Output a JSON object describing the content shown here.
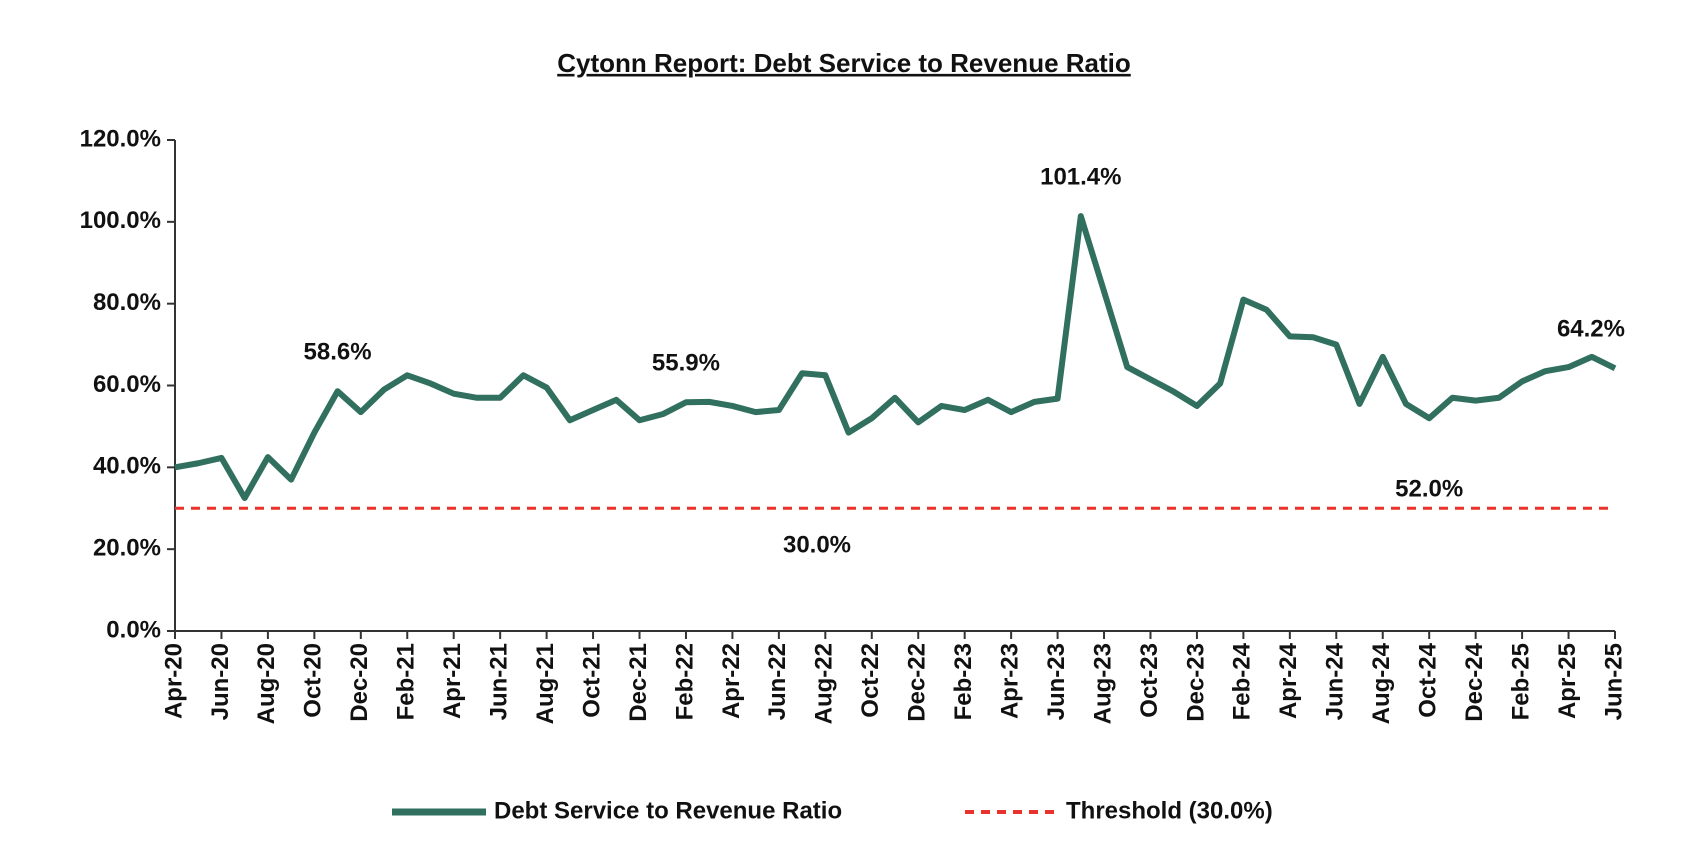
{
  "chart_data": {
    "type": "line",
    "title": "Cytonn Report: Debt Service to Revenue Ratio",
    "categories": [
      "Apr-20",
      null,
      "Jun-20",
      null,
      "Aug-20",
      null,
      "Oct-20",
      null,
      "Dec-20",
      null,
      "Feb-21",
      null,
      "Apr-21",
      null,
      "Jun-21",
      null,
      "Aug-21",
      null,
      "Oct-21",
      null,
      "Dec-21",
      null,
      "Feb-22",
      null,
      "Apr-22",
      null,
      "Jun-22",
      null,
      "Aug-22",
      null,
      "Oct-22",
      null,
      "Dec-22",
      null,
      "Feb-23",
      null,
      "Apr-23",
      null,
      "Jun-23",
      null,
      "Aug-23",
      null,
      "Oct-23",
      null,
      "Dec-23",
      null,
      "Feb-24",
      null,
      "Apr-24",
      null,
      "Jun-24",
      null,
      "Aug-24",
      null,
      "Oct-24",
      null,
      "Dec-24",
      null,
      "Feb-25",
      null,
      "Apr-25",
      null,
      "Jun-25"
    ],
    "series": [
      {
        "name": "Debt Service to Revenue Ratio",
        "color": "#316f5e",
        "values": [
          40,
          41,
          42.3,
          32.5,
          42.5,
          37,
          48.5,
          58.6,
          53.5,
          59,
          62.5,
          60.5,
          58,
          57,
          57,
          62.5,
          59.5,
          51.5,
          54,
          56.5,
          51.5,
          53,
          55.9,
          56,
          55,
          53.5,
          54,
          63,
          62.5,
          48.5,
          52,
          57,
          51,
          55,
          54,
          56.5,
          53.5,
          56,
          56.8,
          101.4,
          83,
          64.5,
          61.5,
          58.5,
          55,
          60.5,
          81,
          78.5,
          72,
          71.8,
          70,
          55.5,
          67,
          55.5,
          52,
          57,
          56.3,
          57,
          61,
          63.5,
          64.5,
          67,
          64.2
        ],
        "value_labels": [
          null,
          null,
          null,
          null,
          null,
          null,
          null,
          "58.6%",
          null,
          null,
          null,
          null,
          null,
          null,
          null,
          null,
          null,
          null,
          null,
          null,
          null,
          null,
          "55.9%",
          null,
          null,
          null,
          null,
          null,
          null,
          null,
          null,
          null,
          null,
          null,
          null,
          null,
          null,
          null,
          null,
          "101.4%",
          null,
          null,
          null,
          null,
          null,
          null,
          null,
          null,
          null,
          null,
          null,
          null,
          null,
          null,
          "52.0%",
          null,
          null,
          null,
          null,
          null,
          null,
          null,
          "64.2%"
        ]
      }
    ],
    "threshold": {
      "name": "Threshold (30.0%)",
      "color": "#e8322b",
      "value": 30,
      "value_label": "30.0%"
    },
    "ylim": [
      0,
      120
    ],
    "yticks": [
      {
        "value": 0,
        "label": "0.0%"
      },
      {
        "value": 20,
        "label": "20.0%"
      },
      {
        "value": 40,
        "label": "40.0%"
      },
      {
        "value": 60,
        "label": "60.0%"
      },
      {
        "value": 80,
        "label": "80.0%"
      },
      {
        "value": 100,
        "label": "100.0%"
      },
      {
        "value": 120,
        "label": "120.0%"
      }
    ],
    "legend": "bottom"
  }
}
